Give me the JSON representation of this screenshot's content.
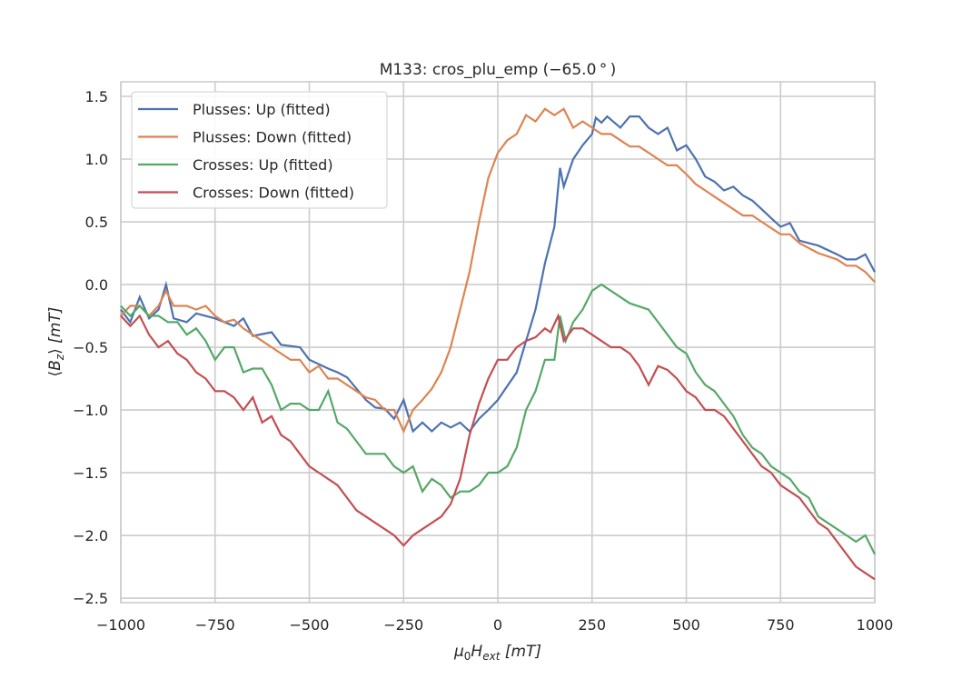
{
  "chart_data": {
    "type": "line",
    "title": "M133: cros_plu_emp (−65.0 ° )",
    "xlabel": "μ0Hext [mT]",
    "xlabel_parts": {
      "mu": "μ",
      "mu_sub": "0",
      "H": "H",
      "H_sub": "ext",
      "unit": " [mT]"
    },
    "ylabel": "⟨Bz⟩ [mT]",
    "ylabel_parts": {
      "open": "⟨",
      "B": "B",
      "B_sub": "z",
      "close": "⟩",
      "unit": " [mT]"
    },
    "xlim": [
      -1000,
      1000
    ],
    "ylim": [
      -2.536,
      1.616
    ],
    "xticks": [
      -1000,
      -750,
      -500,
      -250,
      0,
      250,
      500,
      750,
      1000
    ],
    "xtick_labels": [
      "−1000",
      "−750",
      "−500",
      "−250",
      "0",
      "250",
      "500",
      "750",
      "1000"
    ],
    "yticks": [
      1.5,
      1.0,
      0.5,
      0.0,
      -0.5,
      -1.0,
      -1.5,
      -2.0,
      -2.5
    ],
    "ytick_labels": [
      "1.5",
      "1.0",
      "0.5",
      "0.0",
      "−0.5",
      "−1.0",
      "−1.5",
      "−2.0",
      "−2.5"
    ],
    "grid": true,
    "legend_position": "top-left",
    "series": [
      {
        "name": "Plusses: Up (fitted)",
        "color": "#4c72b0",
        "x": [
          -1000,
          -975,
          -950,
          -925,
          -900,
          -880,
          -860,
          -825,
          -800,
          -750,
          -700,
          -675,
          -650,
          -600,
          -575,
          -525,
          -500,
          -450,
          -425,
          -400,
          -375,
          -350,
          -325,
          -300,
          -275,
          -250,
          -225,
          -200,
          -175,
          -150,
          -125,
          -100,
          -75,
          -50,
          -25,
          0,
          25,
          50,
          75,
          100,
          125,
          150,
          165,
          175,
          200,
          225,
          250,
          260,
          275,
          290,
          325,
          350,
          375,
          400,
          425,
          450,
          475,
          500,
          525,
          550,
          575,
          600,
          625,
          650,
          675,
          700,
          725,
          750,
          775,
          800,
          850,
          900,
          925,
          950,
          975,
          1000
        ],
        "y": [
          -0.2,
          -0.3,
          -0.1,
          -0.27,
          -0.2,
          0.0,
          -0.27,
          -0.3,
          -0.23,
          -0.27,
          -0.33,
          -0.27,
          -0.41,
          -0.38,
          -0.48,
          -0.5,
          -0.6,
          -0.67,
          -0.7,
          -0.74,
          -0.83,
          -0.92,
          -0.98,
          -0.99,
          -1.07,
          -0.92,
          -1.17,
          -1.1,
          -1.17,
          -1.1,
          -1.14,
          -1.1,
          -1.17,
          -1.07,
          -1.0,
          -0.92,
          -0.81,
          -0.7,
          -0.45,
          -0.2,
          0.17,
          0.46,
          0.93,
          0.78,
          1.0,
          1.11,
          1.2,
          1.33,
          1.29,
          1.34,
          1.25,
          1.34,
          1.34,
          1.25,
          1.2,
          1.25,
          1.07,
          1.11,
          1.0,
          0.86,
          0.82,
          0.75,
          0.78,
          0.71,
          0.67,
          0.6,
          0.53,
          0.46,
          0.49,
          0.35,
          0.31,
          0.24,
          0.2,
          0.2,
          0.24,
          0.1
        ]
      },
      {
        "name": "Plusses: Down (fitted)",
        "color": "#dd8452",
        "x": [
          -1000,
          -975,
          -950,
          -925,
          -900,
          -880,
          -860,
          -825,
          -800,
          -775,
          -750,
          -725,
          -700,
          -675,
          -650,
          -625,
          -600,
          -575,
          -550,
          -525,
          -500,
          -475,
          -450,
          -425,
          -400,
          -375,
          -350,
          -325,
          -300,
          -275,
          -250,
          -225,
          -200,
          -175,
          -150,
          -125,
          -100,
          -75,
          -50,
          -25,
          0,
          25,
          50,
          75,
          100,
          125,
          150,
          175,
          200,
          225,
          250,
          275,
          300,
          325,
          350,
          375,
          400,
          425,
          450,
          475,
          500,
          525,
          550,
          575,
          600,
          625,
          650,
          675,
          700,
          725,
          750,
          775,
          800,
          850,
          900,
          925,
          950,
          975,
          1000
        ],
        "y": [
          -0.25,
          -0.17,
          -0.17,
          -0.25,
          -0.17,
          -0.05,
          -0.17,
          -0.17,
          -0.2,
          -0.17,
          -0.25,
          -0.3,
          -0.28,
          -0.35,
          -0.4,
          -0.45,
          -0.5,
          -0.55,
          -0.6,
          -0.6,
          -0.7,
          -0.65,
          -0.75,
          -0.75,
          -0.8,
          -0.85,
          -0.9,
          -0.92,
          -1.0,
          -1.0,
          -1.17,
          -1.0,
          -0.92,
          -0.83,
          -0.7,
          -0.5,
          -0.2,
          0.1,
          0.5,
          0.85,
          1.05,
          1.15,
          1.2,
          1.35,
          1.3,
          1.4,
          1.35,
          1.4,
          1.25,
          1.3,
          1.25,
          1.2,
          1.2,
          1.15,
          1.1,
          1.1,
          1.05,
          1.0,
          0.95,
          0.95,
          0.88,
          0.8,
          0.75,
          0.7,
          0.65,
          0.6,
          0.55,
          0.55,
          0.5,
          0.45,
          0.4,
          0.4,
          0.33,
          0.25,
          0.2,
          0.15,
          0.15,
          0.1,
          0.02
        ]
      },
      {
        "name": "Crosses: Up (fitted)",
        "color": "#55a868",
        "x": [
          -1000,
          -975,
          -950,
          -925,
          -900,
          -875,
          -850,
          -825,
          -800,
          -775,
          -750,
          -725,
          -700,
          -675,
          -650,
          -625,
          -600,
          -575,
          -550,
          -525,
          -500,
          -475,
          -450,
          -425,
          -400,
          -375,
          -350,
          -325,
          -300,
          -275,
          -250,
          -225,
          -200,
          -175,
          -150,
          -125,
          -100,
          -75,
          -50,
          -25,
          0,
          25,
          50,
          75,
          100,
          125,
          150,
          165,
          180,
          200,
          225,
          250,
          275,
          300,
          325,
          350,
          400,
          425,
          450,
          475,
          500,
          525,
          550,
          575,
          600,
          625,
          650,
          675,
          700,
          725,
          750,
          775,
          800,
          825,
          850,
          875,
          900,
          925,
          950,
          975,
          1000
        ],
        "y": [
          -0.17,
          -0.25,
          -0.17,
          -0.25,
          -0.25,
          -0.3,
          -0.3,
          -0.4,
          -0.35,
          -0.45,
          -0.6,
          -0.5,
          -0.5,
          -0.7,
          -0.67,
          -0.67,
          -0.8,
          -1.0,
          -0.95,
          -0.95,
          -1.0,
          -1.0,
          -0.85,
          -1.1,
          -1.15,
          -1.25,
          -1.35,
          -1.35,
          -1.35,
          -1.45,
          -1.5,
          -1.45,
          -1.65,
          -1.55,
          -1.6,
          -1.7,
          -1.65,
          -1.65,
          -1.6,
          -1.5,
          -1.5,
          -1.45,
          -1.3,
          -1.0,
          -0.85,
          -0.6,
          -0.6,
          -0.25,
          -0.45,
          -0.3,
          -0.2,
          -0.05,
          0.0,
          -0.05,
          -0.1,
          -0.15,
          -0.2,
          -0.3,
          -0.4,
          -0.5,
          -0.55,
          -0.7,
          -0.8,
          -0.85,
          -0.95,
          -1.05,
          -1.2,
          -1.3,
          -1.35,
          -1.45,
          -1.5,
          -1.55,
          -1.65,
          -1.7,
          -1.85,
          -1.9,
          -1.95,
          -2.0,
          -2.05,
          -2.0,
          -2.15
        ]
      },
      {
        "name": "Crosses: Down (fitted)",
        "color": "#c44e52",
        "x": [
          -1000,
          -975,
          -950,
          -925,
          -900,
          -875,
          -850,
          -825,
          -800,
          -775,
          -750,
          -725,
          -700,
          -675,
          -650,
          -625,
          -600,
          -575,
          -550,
          -525,
          -500,
          -475,
          -450,
          -425,
          -400,
          -375,
          -350,
          -325,
          -300,
          -275,
          -250,
          -225,
          -200,
          -175,
          -150,
          -125,
          -100,
          -75,
          -50,
          -25,
          0,
          25,
          50,
          75,
          100,
          125,
          140,
          160,
          175,
          200,
          225,
          250,
          275,
          300,
          325,
          350,
          375,
          400,
          425,
          450,
          475,
          500,
          525,
          550,
          575,
          600,
          625,
          650,
          675,
          700,
          725,
          750,
          775,
          800,
          825,
          850,
          875,
          900,
          925,
          950,
          975,
          1000
        ],
        "y": [
          -0.25,
          -0.33,
          -0.25,
          -0.4,
          -0.5,
          -0.45,
          -0.55,
          -0.6,
          -0.7,
          -0.75,
          -0.85,
          -0.85,
          -0.9,
          -1.0,
          -0.9,
          -1.1,
          -1.05,
          -1.2,
          -1.25,
          -1.35,
          -1.45,
          -1.5,
          -1.55,
          -1.6,
          -1.7,
          -1.8,
          -1.85,
          -1.9,
          -1.95,
          -2.0,
          -2.08,
          -2.0,
          -1.95,
          -1.9,
          -1.85,
          -1.75,
          -1.55,
          -1.2,
          -0.95,
          -0.75,
          -0.6,
          -0.6,
          -0.5,
          -0.45,
          -0.42,
          -0.35,
          -0.38,
          -0.25,
          -0.45,
          -0.35,
          -0.35,
          -0.4,
          -0.45,
          -0.5,
          -0.5,
          -0.55,
          -0.65,
          -0.8,
          -0.65,
          -0.68,
          -0.75,
          -0.85,
          -0.9,
          -1.0,
          -1.0,
          -1.05,
          -1.15,
          -1.25,
          -1.35,
          -1.45,
          -1.5,
          -1.6,
          -1.65,
          -1.7,
          -1.8,
          -1.9,
          -1.95,
          -2.05,
          -2.15,
          -2.25,
          -2.3,
          -2.35
        ]
      }
    ]
  },
  "style": {
    "grid_color": "#cccccc",
    "text_color": "#262626",
    "background": "#ffffff"
  }
}
